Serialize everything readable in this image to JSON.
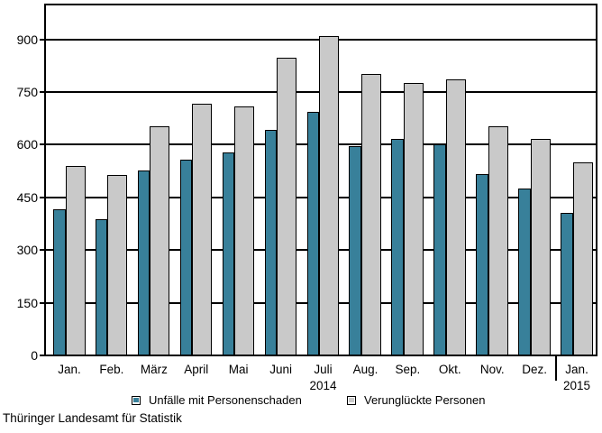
{
  "source": "Thüringer Landesamt für Statistik",
  "chart_data": {
    "type": "bar",
    "title": "",
    "xlabel": "",
    "ylabel": "",
    "categories": [
      "Jan.",
      "Feb.",
      "März",
      "April",
      "Mai",
      "Juni",
      "Juli",
      "Aug.",
      "Sep.",
      "Okt.",
      "Nov.",
      "Dez.",
      "Jan."
    ],
    "series": [
      {
        "name": "Unfälle mit Personenschaden",
        "color": "#38809A",
        "values": [
          413,
          385,
          524,
          554,
          575,
          639,
          690,
          594,
          614,
          598,
          513,
          472,
          404
        ]
      },
      {
        "name": "Verunglückte Personen",
        "color": "#C9C9C9",
        "values": [
          538,
          511,
          650,
          714,
          706,
          845,
          906,
          800,
          773,
          784,
          649,
          615,
          546
        ]
      }
    ],
    "y_ticks": [
      0,
      150,
      300,
      450,
      600,
      750,
      900
    ],
    "ylim": [
      0,
      1000
    ],
    "grid": "horizontal",
    "legend_position": "bottom",
    "year_labels": [
      {
        "text": "2014",
        "category_index": 6
      },
      {
        "text": "2015",
        "category_index": 12
      }
    ],
    "year_divider_after_index": 11
  }
}
